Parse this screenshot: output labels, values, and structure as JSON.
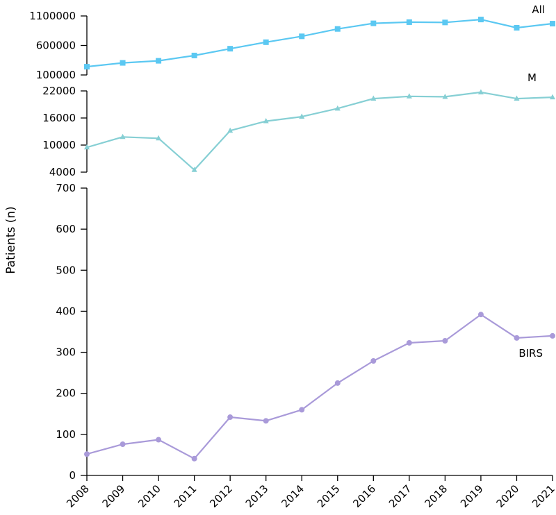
{
  "chart_data": [
    {
      "type": "line",
      "title": "",
      "xlabel": "",
      "ylabel": "",
      "x": [
        2008,
        2009,
        2010,
        2011,
        2012,
        2013,
        2014,
        2015,
        2016,
        2017,
        2018,
        2019,
        2020,
        2021
      ],
      "ylim": [
        100000,
        1100000
      ],
      "yticks": [
        100000,
        600000,
        1100000
      ],
      "grid": false,
      "marker": "square",
      "color": "#5bc8f2",
      "series": [
        {
          "name": "All",
          "values": [
            240000,
            305000,
            340000,
            430000,
            545000,
            655000,
            755000,
            880000,
            975000,
            995000,
            990000,
            1040000,
            900000,
            970000
          ]
        }
      ]
    },
    {
      "type": "line",
      "title": "",
      "xlabel": "",
      "ylabel": "",
      "x": [
        2008,
        2009,
        2010,
        2011,
        2012,
        2013,
        2014,
        2015,
        2016,
        2017,
        2018,
        2019,
        2020,
        2021
      ],
      "ylim": [
        4000,
        22000
      ],
      "yticks": [
        4000,
        10000,
        16000,
        22000
      ],
      "grid": false,
      "marker": "triangle",
      "color": "#86cfd4",
      "series": [
        {
          "name": "M",
          "values": [
            9500,
            11800,
            11500,
            4500,
            13200,
            15300,
            16300,
            18100,
            20300,
            20800,
            20700,
            21700,
            20300,
            20600
          ]
        }
      ]
    },
    {
      "type": "line",
      "title": "",
      "xlabel": "",
      "ylabel": "Patients (n)",
      "x": [
        2008,
        2009,
        2010,
        2011,
        2012,
        2013,
        2014,
        2015,
        2016,
        2017,
        2018,
        2019,
        2020,
        2021
      ],
      "ylim": [
        0,
        700
      ],
      "yticks": [
        0,
        100,
        200,
        300,
        400,
        500,
        600,
        700
      ],
      "grid": false,
      "marker": "circle",
      "color": "#a99ad9",
      "series": [
        {
          "name": "BIRS",
          "values": [
            52,
            76,
            87,
            41,
            142,
            133,
            160,
            225,
            279,
            323,
            328,
            392,
            335,
            340
          ]
        }
      ]
    }
  ]
}
